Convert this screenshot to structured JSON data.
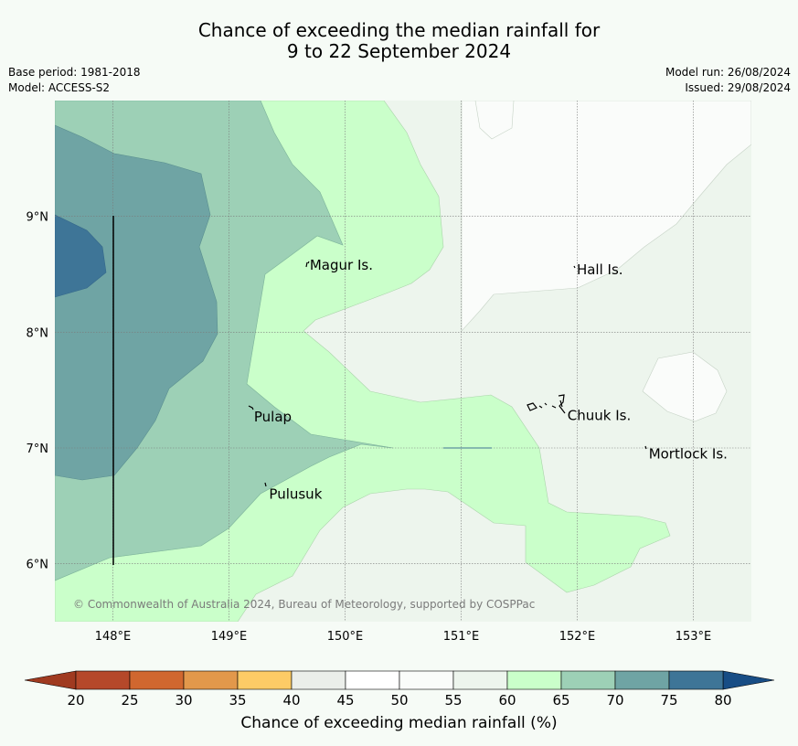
{
  "title_line1": "Chance of exceeding the median rainfall for",
  "title_line2": "9 to 22 September 2024",
  "meta": {
    "base_period": "Base period: 1981-2018",
    "model": "Model: ACCESS-S2",
    "model_run": "Model run: 26/08/2024",
    "issued": "Issued: 29/08/2024"
  },
  "map": {
    "lon_range": [
      147.5,
      153.5
    ],
    "lat_range": [
      5.5,
      10.0
    ],
    "lon_ticks": [
      {
        "value": 148,
        "label": "148°E"
      },
      {
        "value": 149,
        "label": "149°E"
      },
      {
        "value": 150,
        "label": "150°E"
      },
      {
        "value": 151,
        "label": "151°E"
      },
      {
        "value": 152,
        "label": "152°E"
      },
      {
        "value": 153,
        "label": "153°E"
      }
    ],
    "lat_ticks": [
      {
        "value": 9,
        "label": "9°N"
      },
      {
        "value": 8,
        "label": "8°N"
      },
      {
        "value": 7,
        "label": "7°N"
      },
      {
        "value": 6,
        "label": "6°N"
      }
    ],
    "places": [
      {
        "name": "Magur Is.",
        "lon": 149.68,
        "lat": 8.58
      },
      {
        "name": "Pulap",
        "lon": 149.2,
        "lat": 7.27
      },
      {
        "name": "Pulusuk",
        "lon": 149.33,
        "lat": 6.6
      },
      {
        "name": "Hall Is.",
        "lon": 151.98,
        "lat": 8.54
      },
      {
        "name": "Chuuk Is.",
        "lon": 151.9,
        "lat": 7.28
      },
      {
        "name": "Mortlock Is.",
        "lon": 152.6,
        "lat": 6.95
      }
    ],
    "copyright": "© Commonwealth of Australia 2024, Bureau of Meteorology, supported by COSPPac"
  },
  "colorbar": {
    "ticks": [
      "20",
      "25",
      "30",
      "35",
      "40",
      "45",
      "50",
      "55",
      "60",
      "65",
      "70",
      "75",
      "80"
    ],
    "colors": [
      "#b5482a",
      "#d0672f",
      "#e2984b",
      "#fdcb66",
      "#ebeeea",
      "#ffffff",
      "#fafcfa",
      "#edf5ed",
      "#caffca",
      "#9dd0b6",
      "#6fa4a4",
      "#3e7597"
    ],
    "under_color": "#a03a20",
    "over_color": "#184d85",
    "label": "Chance of exceeding median rainfall (%)"
  }
}
